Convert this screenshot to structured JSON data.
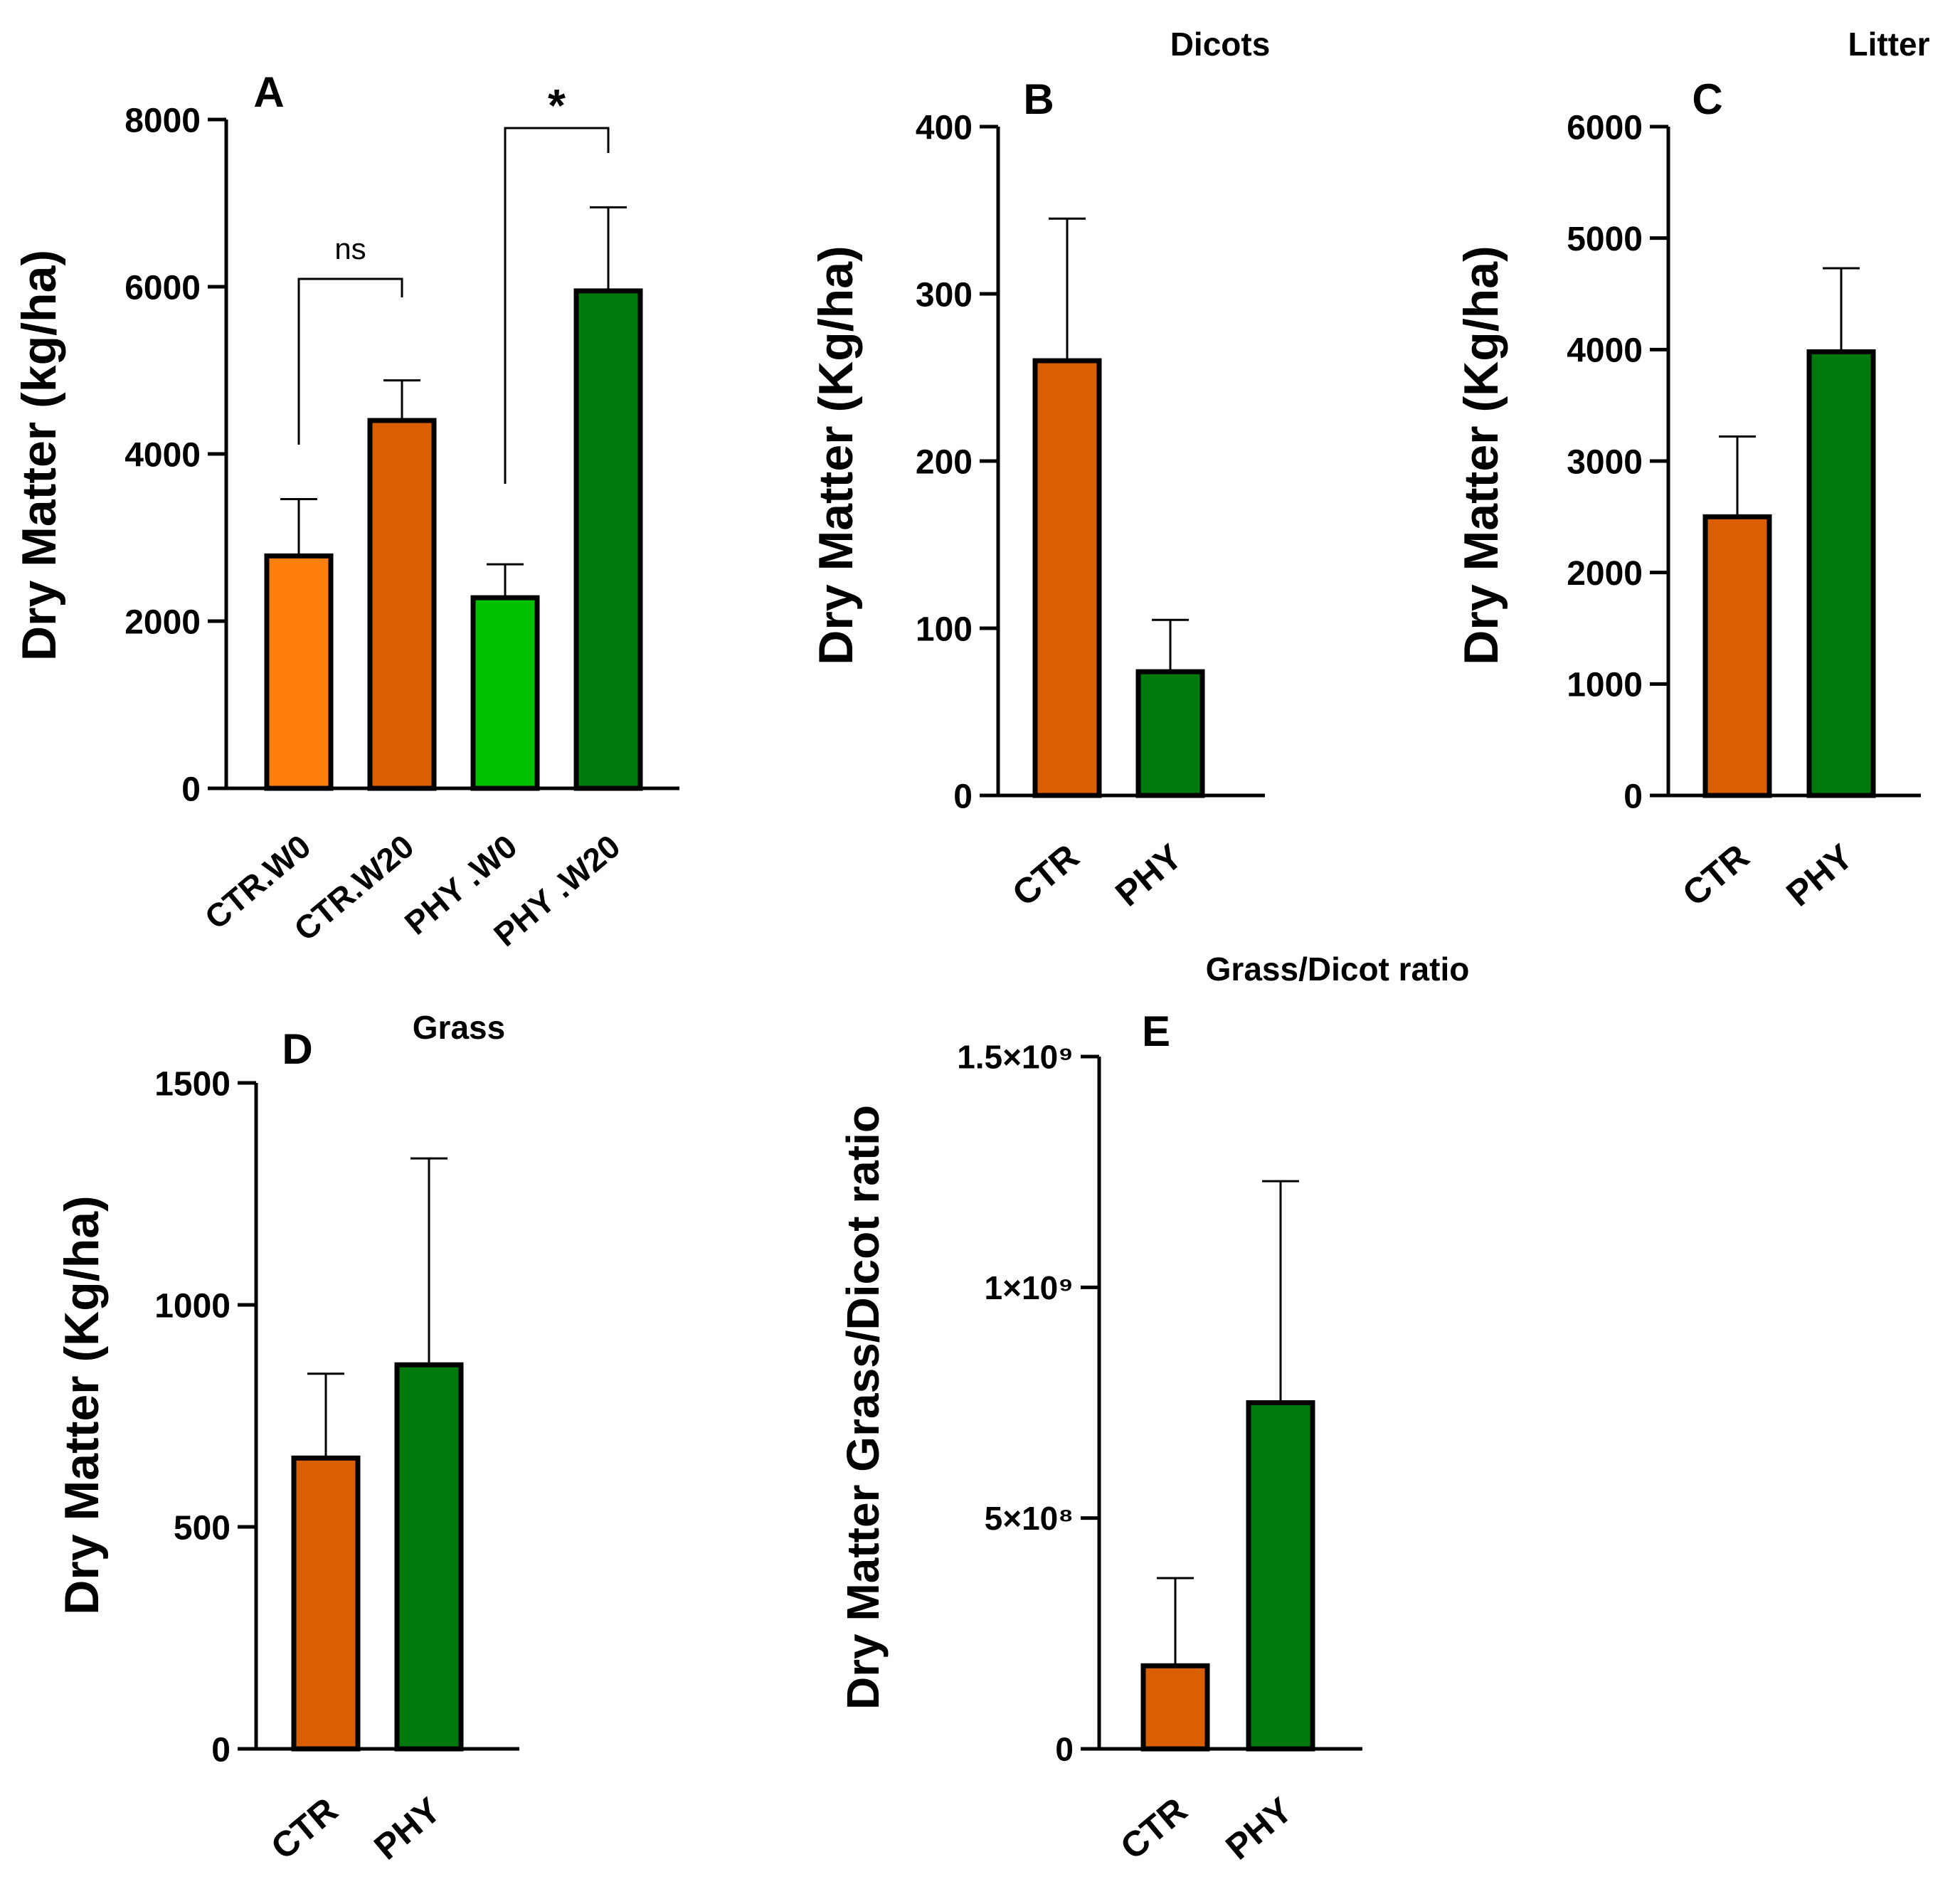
{
  "chart_data": [
    {
      "panel": "A",
      "type": "bar",
      "title": "",
      "ylabel": "Dry  Matter  (kg/ha)",
      "categories": [
        "CTR.W0",
        "CTR.W20",
        "PHY .W0",
        "PHY .W20"
      ],
      "values": [
        2780,
        4400,
        2280,
        5950
      ],
      "errors": [
        680,
        480,
        400,
        1000
      ],
      "colors": [
        "#ff7f0e",
        "#d95f02",
        "#00c000",
        "#007a0c"
      ],
      "ylim": [
        0,
        8000
      ],
      "yticks": [
        "0",
        "2000",
        "4000",
        "6000",
        "8000"
      ],
      "brackets": [
        {
          "from": 0,
          "to": 1,
          "label": "ns"
        },
        {
          "from": 2,
          "to": 3,
          "label": "*"
        }
      ]
    },
    {
      "panel": "B",
      "type": "bar",
      "title": "Dicots",
      "ylabel": "Dry  Matter  (Kg/ha)",
      "categories": [
        "CTR",
        "PHY"
      ],
      "values": [
        260,
        74
      ],
      "errors": [
        85,
        31
      ],
      "colors": [
        "#d95f02",
        "#007a0c"
      ],
      "ylim": [
        0,
        400
      ],
      "yticks": [
        "0",
        "100",
        "200",
        "300",
        "400"
      ]
    },
    {
      "panel": "C",
      "type": "bar",
      "title": "Litter",
      "ylabel": "Dry  Matter  (Kg/ha)",
      "categories": [
        "CTR",
        "PHY"
      ],
      "values": [
        2500,
        3980
      ],
      "errors": [
        720,
        750
      ],
      "colors": [
        "#d95f02",
        "#007a0c"
      ],
      "ylim": [
        0,
        6000
      ],
      "yticks": [
        "0",
        "1000",
        "2000",
        "3000",
        "4000",
        "5000",
        "6000"
      ]
    },
    {
      "panel": "D",
      "type": "bar",
      "title": "Grass",
      "ylabel": "Dry  Matter  (Kg/ha)",
      "categories": [
        "CTR",
        "PHY"
      ],
      "values": [
        655,
        865
      ],
      "errors": [
        190,
        465
      ],
      "colors": [
        "#d95f02",
        "#007a0c"
      ],
      "ylim": [
        0,
        1500
      ],
      "yticks": [
        "0",
        "500",
        "1000",
        "1500"
      ]
    },
    {
      "panel": "E",
      "type": "bar",
      "title": "Grass/Dicot ratio",
      "ylabel": "Dry  Matter  Grass/Dicot ratio",
      "categories": [
        "CTR",
        "PHY"
      ],
      "values": [
        180000000,
        750000000
      ],
      "errors": [
        190000000,
        480000000
      ],
      "colors": [
        "#d95f02",
        "#007a0c"
      ],
      "ylim": [
        0,
        1500000000
      ],
      "yticks": [
        "0",
        "5×10⁸",
        "1×10⁹",
        "1.5×10⁹"
      ]
    }
  ]
}
